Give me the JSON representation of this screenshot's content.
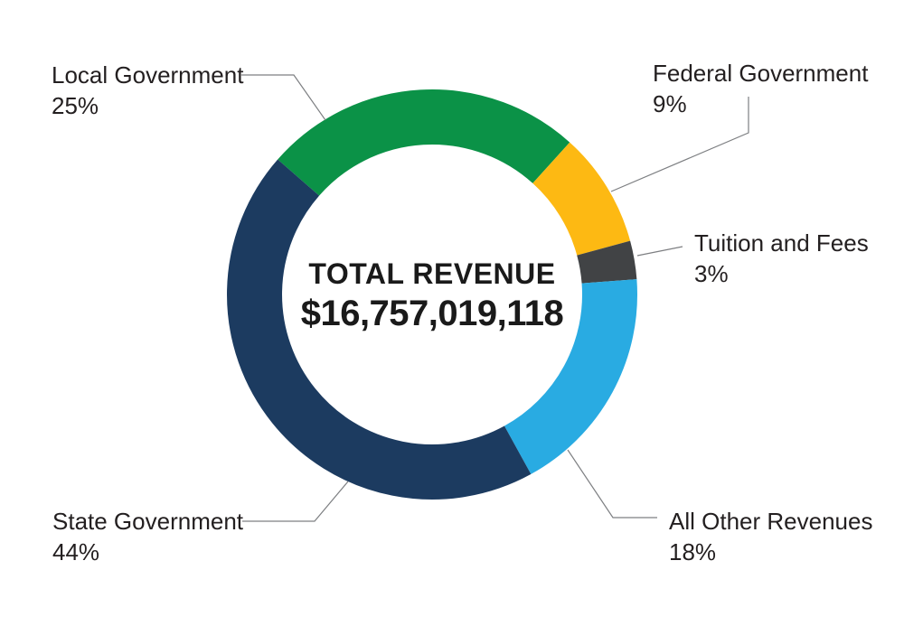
{
  "figure": {
    "background_color": "#FFFFFF"
  },
  "chart_data": {
    "type": "pie",
    "subtype": "donut",
    "title": "TOTAL REVENUE",
    "center_label": {
      "title": "TOTAL REVENUE",
      "value": "$16,757,019,118"
    },
    "legend_position": "callout-labels-with-leader-lines",
    "start_angle_deg": -48.8,
    "segments": [
      {
        "label": "Local Government",
        "percent": "25%",
        "value": 25,
        "color": "#0B9247"
      },
      {
        "label": "Federal Government",
        "percent": "9%",
        "value": 9,
        "color": "#FDB913"
      },
      {
        "label": "Tuition and Fees",
        "percent": "3%",
        "value": 3,
        "color": "#414345"
      },
      {
        "label": "All Other Revenues",
        "percent": "18%",
        "value": 18,
        "color": "#29ABE2"
      },
      {
        "label": "State Government",
        "percent": "44%",
        "value": 44,
        "color": "#1C3B60"
      }
    ],
    "leader_line_color": "#7D7F82",
    "label_text_color": "#231F20",
    "center_text_color": "#1A1A1A"
  }
}
